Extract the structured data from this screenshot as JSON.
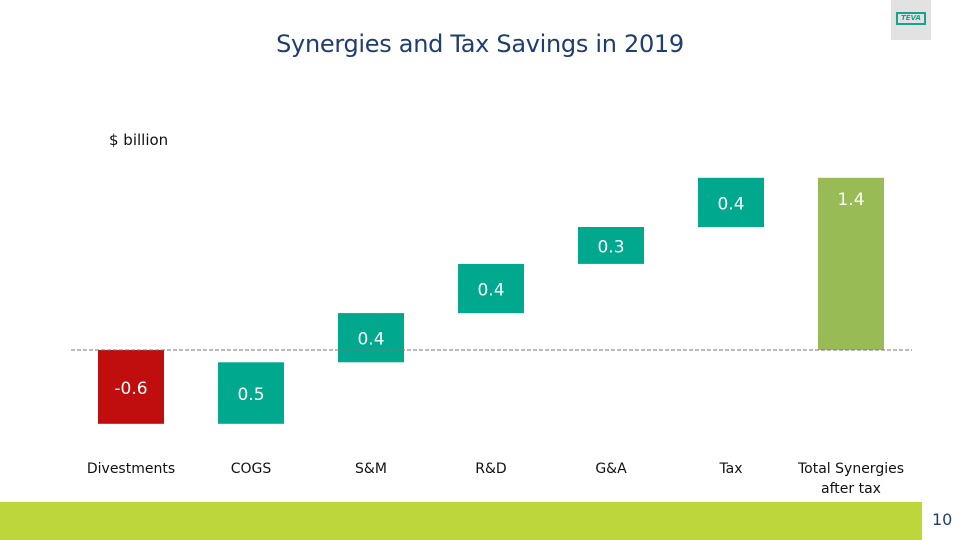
{
  "slide": {
    "title": "Synergies and Tax Savings in 2019",
    "logo_text": "TEVA",
    "page_number": "10"
  },
  "chart_data": {
    "type": "bar",
    "subtype": "waterfall",
    "title": "Synergies and Tax Savings in 2019",
    "unit_label": "$ billion",
    "categories": [
      "Divestments",
      "COGS",
      "S&M",
      "R&D",
      "G&A",
      "Tax",
      "Total Synergies after tax"
    ],
    "values": [
      -0.6,
      0.5,
      0.4,
      0.4,
      0.3,
      0.4,
      1.4
    ],
    "labels": [
      "-0.6",
      "0.5",
      "0.4",
      "0.4",
      "0.3",
      "0.4",
      "1.4"
    ],
    "bar_kinds": [
      "decrease",
      "increase",
      "increase",
      "increase",
      "increase",
      "increase",
      "total"
    ],
    "baseline": 0,
    "baseline_style": "dashed",
    "xlabel": "",
    "ylabel": "",
    "grid": false,
    "legend": "none",
    "colors": {
      "decrease": "#c00d0d",
      "increase": "#00a88e",
      "total": "#98bb55"
    }
  }
}
